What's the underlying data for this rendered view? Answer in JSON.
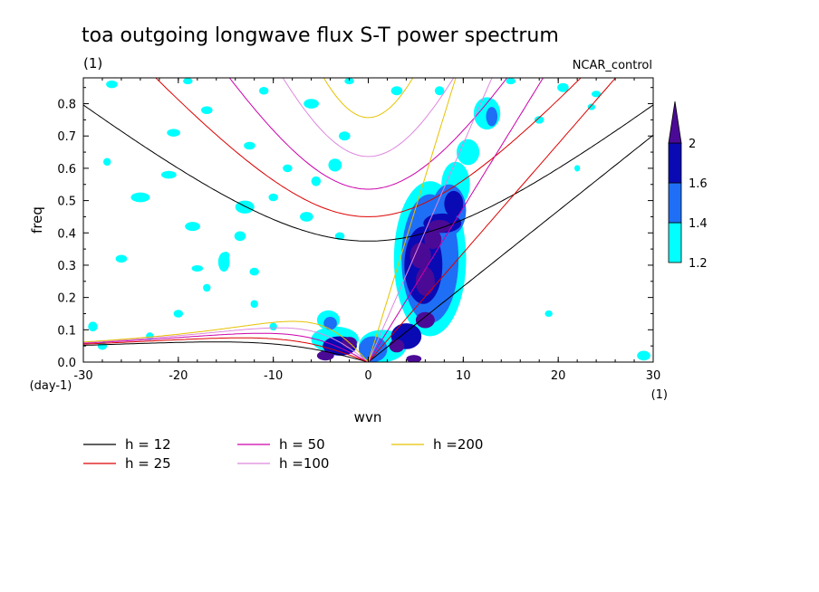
{
  "chart_data": {
    "type": "heatmap",
    "title": "toa outgoing longwave flux S-T power spectrum",
    "units_label": "(1)",
    "subtitle_right": "NCAR_control",
    "xlabel": "wvn",
    "ylabel": "freq",
    "x_unit_label": "(1)",
    "y_unit_label": "(day-1)",
    "xlim": [
      -30,
      30
    ],
    "ylim": [
      0,
      0.88
    ],
    "x_ticks": [
      -30,
      -20,
      -10,
      0,
      10,
      20,
      30
    ],
    "x_tick_labels": [
      "-30",
      "-20",
      "-10",
      "0",
      "10",
      "20",
      "30"
    ],
    "y_ticks": [
      0,
      0.1,
      0.2,
      0.3,
      0.4,
      0.5,
      0.6,
      0.7,
      0.8
    ],
    "y_tick_labels": [
      "0.0",
      "0.1",
      "0.2",
      "0.3",
      "0.4",
      "0.5",
      "0.6",
      "0.7",
      "0.8"
    ],
    "colorbar": {
      "levels": [
        1.2,
        1.4,
        1.6,
        2
      ],
      "labels": [
        "1.2",
        "1.4",
        "1.6",
        "2"
      ],
      "colors": [
        "#00ffff",
        "#1e6ff5",
        "#0a0ab4",
        "#4b0a96"
      ]
    },
    "dispersion_curves": [
      {
        "label": "h = 12",
        "h": 12,
        "color": "#000000"
      },
      {
        "label": "h = 25",
        "h": 25,
        "color": "#dd0000"
      },
      {
        "label": "h = 50",
        "h": 50,
        "color": "#cc00aa"
      },
      {
        "label": "h =100",
        "h": 100,
        "color": "#dd88dd"
      },
      {
        "label": "h =200",
        "h": 200,
        "color": "#e6c200"
      }
    ],
    "blobs": [
      {
        "x": 5.5,
        "y": 0.33,
        "rx": 1.1,
        "ry": 0.04,
        "level": 4
      },
      {
        "x": 6.0,
        "y": 0.25,
        "rx": 1.0,
        "ry": 0.045,
        "level": 4
      },
      {
        "x": 6.8,
        "y": 0.38,
        "rx": 0.9,
        "ry": 0.03,
        "level": 4
      },
      {
        "x": 7.5,
        "y": 0.42,
        "rx": 1.2,
        "ry": 0.02,
        "level": 4
      },
      {
        "x": 6.0,
        "y": 0.13,
        "rx": 1.0,
        "ry": 0.025,
        "level": 4
      },
      {
        "x": 3.0,
        "y": 0.05,
        "rx": 0.8,
        "ry": 0.02,
        "level": 4
      },
      {
        "x": 4.8,
        "y": 0.01,
        "rx": 0.8,
        "ry": 0.012,
        "level": 4
      },
      {
        "x": -4.5,
        "y": 0.02,
        "rx": 0.9,
        "ry": 0.015,
        "level": 4
      },
      {
        "x": -2.0,
        "y": 0.06,
        "rx": 0.8,
        "ry": 0.018,
        "level": 4
      },
      {
        "x": 5.8,
        "y": 0.3,
        "rx": 2.0,
        "ry": 0.12,
        "level": 3
      },
      {
        "x": 7.8,
        "y": 0.43,
        "rx": 2.0,
        "ry": 0.03,
        "level": 3
      },
      {
        "x": 4.0,
        "y": 0.08,
        "rx": 1.6,
        "ry": 0.04,
        "level": 3
      },
      {
        "x": -3.0,
        "y": 0.05,
        "rx": 1.8,
        "ry": 0.03,
        "level": 3
      },
      {
        "x": 9.0,
        "y": 0.49,
        "rx": 1.0,
        "ry": 0.04,
        "level": 3
      },
      {
        "x": 6.5,
        "y": 0.32,
        "rx": 3.0,
        "ry": 0.2,
        "level": 2
      },
      {
        "x": 8.5,
        "y": 0.47,
        "rx": 1.8,
        "ry": 0.08,
        "level": 2
      },
      {
        "x": -4.0,
        "y": 0.12,
        "rx": 0.7,
        "ry": 0.02,
        "level": 2
      },
      {
        "x": 0.5,
        "y": 0.04,
        "rx": 1.5,
        "ry": 0.04,
        "level": 2
      },
      {
        "x": 13.0,
        "y": 0.76,
        "rx": 0.6,
        "ry": 0.03,
        "level": 2
      },
      {
        "x": 6.5,
        "y": 0.32,
        "rx": 3.8,
        "ry": 0.24,
        "level": 1
      },
      {
        "x": 9.2,
        "y": 0.55,
        "rx": 1.5,
        "ry": 0.07,
        "level": 1
      },
      {
        "x": 10.5,
        "y": 0.65,
        "rx": 1.2,
        "ry": 0.04,
        "level": 1
      },
      {
        "x": 12.5,
        "y": 0.77,
        "rx": 1.4,
        "ry": 0.05,
        "level": 1
      },
      {
        "x": 1.5,
        "y": 0.05,
        "rx": 2.5,
        "ry": 0.05,
        "level": 1
      },
      {
        "x": -3.5,
        "y": 0.07,
        "rx": 2.5,
        "ry": 0.04,
        "level": 1
      },
      {
        "x": -4.2,
        "y": 0.13,
        "rx": 1.2,
        "ry": 0.03,
        "level": 1
      },
      {
        "x": -15.2,
        "y": 0.31,
        "rx": 0.6,
        "ry": 0.03,
        "level": 1
      },
      {
        "x": -13.5,
        "y": 0.39,
        "rx": 0.6,
        "ry": 0.015,
        "level": 1
      },
      {
        "x": -13.0,
        "y": 0.48,
        "rx": 1.0,
        "ry": 0.02,
        "level": 1
      },
      {
        "x": -18.0,
        "y": 0.29,
        "rx": 0.6,
        "ry": 0.01,
        "level": 1
      },
      {
        "x": -24.0,
        "y": 0.51,
        "rx": 1.0,
        "ry": 0.015,
        "level": 1
      },
      {
        "x": -21.0,
        "y": 0.58,
        "rx": 0.8,
        "ry": 0.012,
        "level": 1
      },
      {
        "x": -26.0,
        "y": 0.32,
        "rx": 0.6,
        "ry": 0.012,
        "level": 1
      },
      {
        "x": -18.5,
        "y": 0.42,
        "rx": 0.8,
        "ry": 0.014,
        "level": 1
      },
      {
        "x": -20.5,
        "y": 0.71,
        "rx": 0.7,
        "ry": 0.012,
        "level": 1
      },
      {
        "x": -17.0,
        "y": 0.78,
        "rx": 0.6,
        "ry": 0.012,
        "level": 1
      },
      {
        "x": -11.0,
        "y": 0.84,
        "rx": 0.5,
        "ry": 0.012,
        "level": 1
      },
      {
        "x": -6.0,
        "y": 0.8,
        "rx": 0.8,
        "ry": 0.015,
        "level": 1
      },
      {
        "x": -5.5,
        "y": 0.56,
        "rx": 0.5,
        "ry": 0.015,
        "level": 1
      },
      {
        "x": -8.5,
        "y": 0.6,
        "rx": 0.5,
        "ry": 0.012,
        "level": 1
      },
      {
        "x": -6.5,
        "y": 0.45,
        "rx": 0.7,
        "ry": 0.015,
        "level": 1
      },
      {
        "x": -3.5,
        "y": 0.61,
        "rx": 0.7,
        "ry": 0.02,
        "level": 1
      },
      {
        "x": -2.5,
        "y": 0.7,
        "rx": 0.6,
        "ry": 0.014,
        "level": 1
      },
      {
        "x": -17.0,
        "y": 0.23,
        "rx": 0.4,
        "ry": 0.012,
        "level": 1
      },
      {
        "x": -15.0,
        "y": 0.33,
        "rx": 0.4,
        "ry": 0.012,
        "level": 1
      },
      {
        "x": -12.0,
        "y": 0.28,
        "rx": 0.5,
        "ry": 0.012,
        "level": 1
      },
      {
        "x": -10.0,
        "y": 0.51,
        "rx": 0.5,
        "ry": 0.012,
        "level": 1
      },
      {
        "x": -27.5,
        "y": 0.62,
        "rx": 0.4,
        "ry": 0.012,
        "level": 1
      },
      {
        "x": -29.0,
        "y": 0.11,
        "rx": 0.5,
        "ry": 0.015,
        "level": 1
      },
      {
        "x": -28.0,
        "y": 0.05,
        "rx": 0.5,
        "ry": 0.012,
        "level": 1
      },
      {
        "x": -20.0,
        "y": 0.15,
        "rx": 0.5,
        "ry": 0.012,
        "level": 1
      },
      {
        "x": -12.0,
        "y": 0.18,
        "rx": 0.4,
        "ry": 0.012,
        "level": 1
      },
      {
        "x": -23.0,
        "y": 0.08,
        "rx": 0.4,
        "ry": 0.012,
        "level": 1
      },
      {
        "x": -10.0,
        "y": 0.11,
        "rx": 0.4,
        "ry": 0.012,
        "level": 1
      },
      {
        "x": -3.0,
        "y": 0.39,
        "rx": 0.5,
        "ry": 0.012,
        "level": 1
      },
      {
        "x": -12.5,
        "y": 0.67,
        "rx": 0.6,
        "ry": 0.012,
        "level": 1
      },
      {
        "x": -27.0,
        "y": 0.86,
        "rx": 0.6,
        "ry": 0.012,
        "level": 1
      },
      {
        "x": -19.0,
        "y": 0.87,
        "rx": 0.5,
        "ry": 0.01,
        "level": 1
      },
      {
        "x": -2.0,
        "y": 0.87,
        "rx": 0.5,
        "ry": 0.01,
        "level": 1
      },
      {
        "x": 3.0,
        "y": 0.84,
        "rx": 0.6,
        "ry": 0.014,
        "level": 1
      },
      {
        "x": 7.5,
        "y": 0.84,
        "rx": 0.5,
        "ry": 0.014,
        "level": 1
      },
      {
        "x": 20.5,
        "y": 0.85,
        "rx": 0.6,
        "ry": 0.014,
        "level": 1
      },
      {
        "x": 24.0,
        "y": 0.83,
        "rx": 0.5,
        "ry": 0.01,
        "level": 1
      },
      {
        "x": 23.5,
        "y": 0.79,
        "rx": 0.4,
        "ry": 0.01,
        "level": 1
      },
      {
        "x": 18.0,
        "y": 0.75,
        "rx": 0.5,
        "ry": 0.012,
        "level": 1
      },
      {
        "x": 15.0,
        "y": 0.87,
        "rx": 0.5,
        "ry": 0.01,
        "level": 1
      },
      {
        "x": 29.0,
        "y": 0.02,
        "rx": 0.7,
        "ry": 0.015,
        "level": 1
      },
      {
        "x": 19.0,
        "y": 0.15,
        "rx": 0.4,
        "ry": 0.01,
        "level": 1
      },
      {
        "x": 10.0,
        "y": 0.55,
        "rx": 0.4,
        "ry": 0.012,
        "level": 1
      },
      {
        "x": 22.0,
        "y": 0.6,
        "rx": 0.3,
        "ry": 0.01,
        "level": 1
      }
    ]
  }
}
